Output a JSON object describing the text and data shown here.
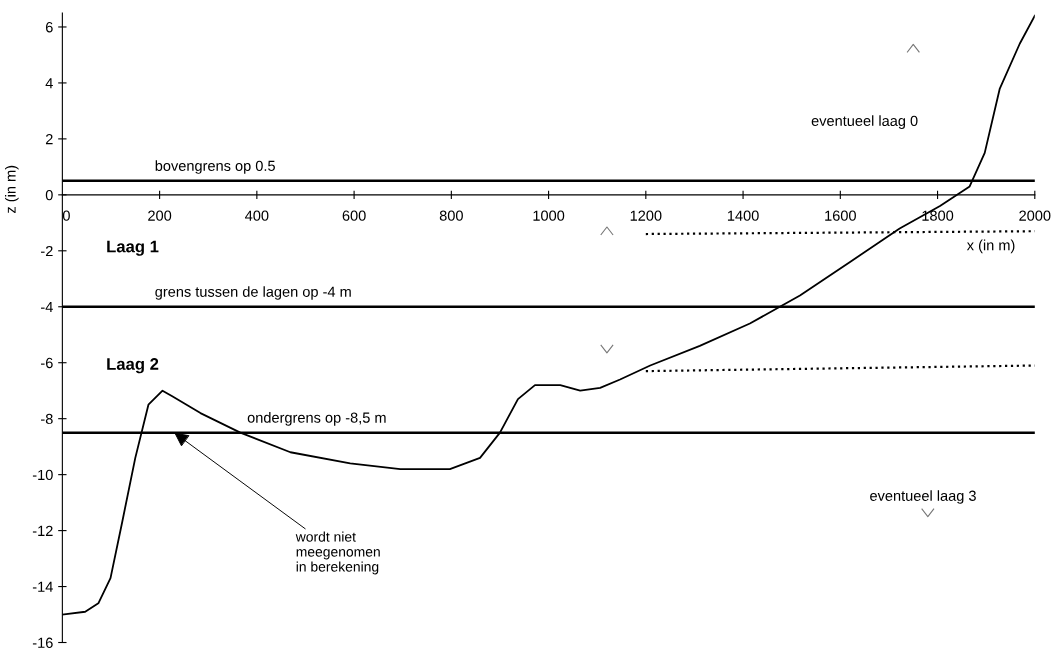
{
  "chart_data": {
    "type": "line",
    "xlabel": "x (in m)",
    "ylabel": "z (in m)",
    "series": [
      {
        "color": "#000000",
        "x": [
          0,
          47,
          74,
          99,
          123,
          150,
          177,
          206,
          226,
          284,
          366,
          469,
          592,
          695,
          797,
          859,
          900,
          937,
          972,
          1024,
          1065,
          1106,
          1147,
          1209,
          1311,
          1414,
          1517,
          1620,
          1722,
          1805,
          1866,
          1897,
          1928,
          1969,
          2000
        ],
        "values": [
          -15.0,
          -14.9,
          -14.6,
          -13.7,
          -11.7,
          -9.4,
          -7.5,
          -7.0,
          -7.2,
          -7.8,
          -8.5,
          -9.2,
          -9.6,
          -9.8,
          -9.8,
          -9.4,
          -8.5,
          -7.3,
          -6.8,
          -6.8,
          -7.0,
          -6.9,
          -6.6,
          -6.1,
          -5.4,
          -4.6,
          -3.6,
          -2.4,
          -1.2,
          -0.4,
          0.3,
          1.5,
          3.8,
          5.4,
          6.4
        ]
      },
      {
        "color": "#000000",
        "line_style": "dotted",
        "x": [
          1200,
          2000
        ],
        "values": [
          -1.4,
          -1.3
        ]
      },
      {
        "color": "#000000",
        "line_style": "dotted",
        "x": [
          1200,
          2000
        ],
        "values": [
          -6.3,
          -6.1
        ]
      }
    ],
    "ref_lines": [
      {
        "axis": "y",
        "value": 0.5,
        "label": "bovengrens op 0.5"
      },
      {
        "axis": "y",
        "value": -4,
        "label": "grens tussen de lagen op -4 m"
      },
      {
        "axis": "y",
        "value": -8.5,
        "label": "ondergrens op -8,5 m"
      }
    ],
    "annotations": [
      "Laag 1",
      "Laag 2",
      "eventueel laag 0",
      "eventueel laag 3",
      {
        "text": "wordt niet\nmeegenomen\nin berekening",
        "x": 230,
        "y": -8.5
      }
    ],
    "xlim": [
      0,
      2000
    ],
    "xticks": [
      0,
      200,
      400,
      600,
      800,
      1000,
      1200,
      1400,
      1600,
      1800,
      2000
    ],
    "ylim": [
      -16,
      6.5
    ],
    "yticks": [
      -16,
      -14,
      -12,
      -10,
      -8,
      -6,
      -4,
      -2,
      0,
      2,
      4,
      6
    ],
    "grid": false,
    "legend": false,
    "marker": "none"
  }
}
